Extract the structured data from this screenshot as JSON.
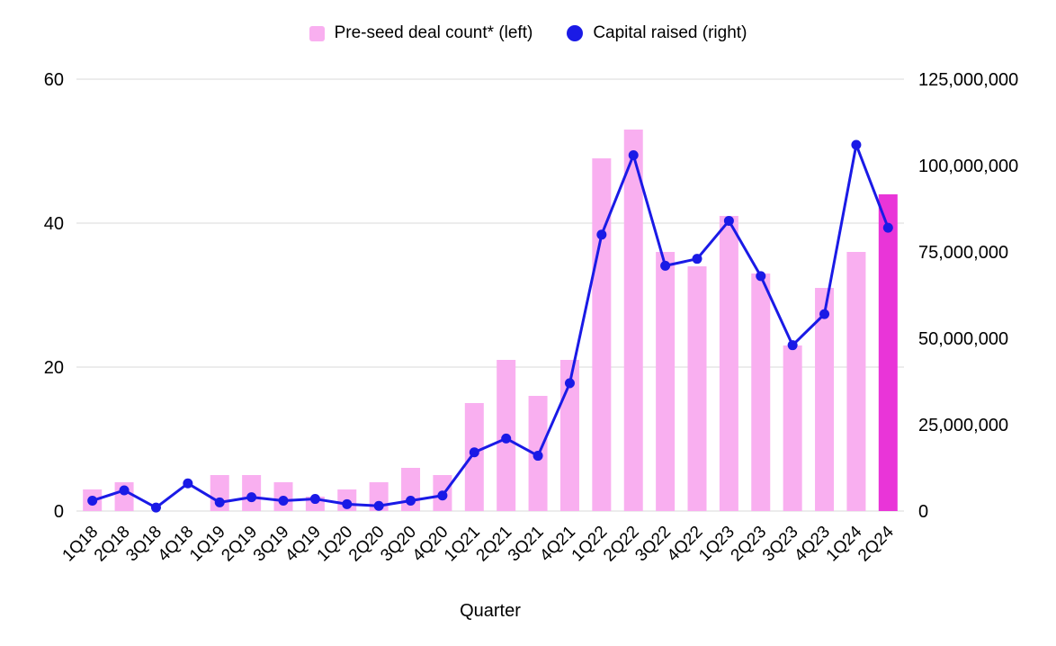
{
  "chart_data": {
    "type": "combo",
    "title": "",
    "x_title": "Quarter",
    "categories": [
      "1Q18",
      "2Q18",
      "3Q18",
      "4Q18",
      "1Q19",
      "2Q19",
      "3Q19",
      "4Q19",
      "1Q20",
      "2Q20",
      "3Q20",
      "4Q20",
      "1Q21",
      "2Q21",
      "3Q21",
      "4Q21",
      "1Q22",
      "2Q22",
      "3Q22",
      "4Q22",
      "1Q23",
      "2Q23",
      "3Q23",
      "4Q23",
      "1Q24",
      "2Q24"
    ],
    "bar_series": {
      "name": "Pre-seed deal count* (left)",
      "axis": "left",
      "color": "#f9aff0",
      "highlight_index": 25,
      "highlight_color": "#e935d8",
      "values": [
        3,
        4,
        0,
        0,
        5,
        5,
        4,
        2,
        3,
        4,
        6,
        5,
        15,
        21,
        16,
        21,
        49,
        53,
        36,
        34,
        41,
        33,
        23,
        31,
        36,
        44
      ]
    },
    "line_series": {
      "name": "Capital raised (right)",
      "axis": "right",
      "color": "#1a1ae6",
      "values": [
        3000000,
        6000000,
        1000000,
        8000000,
        2500000,
        4000000,
        3000000,
        3500000,
        2000000,
        1500000,
        3000000,
        4500000,
        17000000,
        21000000,
        16000000,
        37000000,
        80000000,
        103000000,
        71000000,
        73000000,
        84000000,
        68000000,
        48000000,
        57000000,
        106000000,
        82000000
      ]
    },
    "left_axis": {
      "max": 60,
      "ticks": [
        0,
        20,
        40,
        60
      ],
      "labels": [
        "0",
        "20",
        "40",
        "60"
      ]
    },
    "right_axis": {
      "max": 125000000,
      "ticks": [
        0,
        25000000,
        50000000,
        75000000,
        100000000,
        125000000
      ],
      "labels": [
        "0",
        "25,000,000",
        "50,000,000",
        "75,000,000",
        "100,000,000",
        "125,000,000"
      ]
    },
    "legend": [
      {
        "label": "Pre-seed deal count* (left)",
        "swatch": "square",
        "color": "#f9aff0"
      },
      {
        "label": "Capital raised (right)",
        "swatch": "circle",
        "color": "#1a1ae6"
      }
    ],
    "style": {
      "grid_color": "#dadada",
      "text_color": "#000000",
      "background": "#ffffff"
    }
  }
}
